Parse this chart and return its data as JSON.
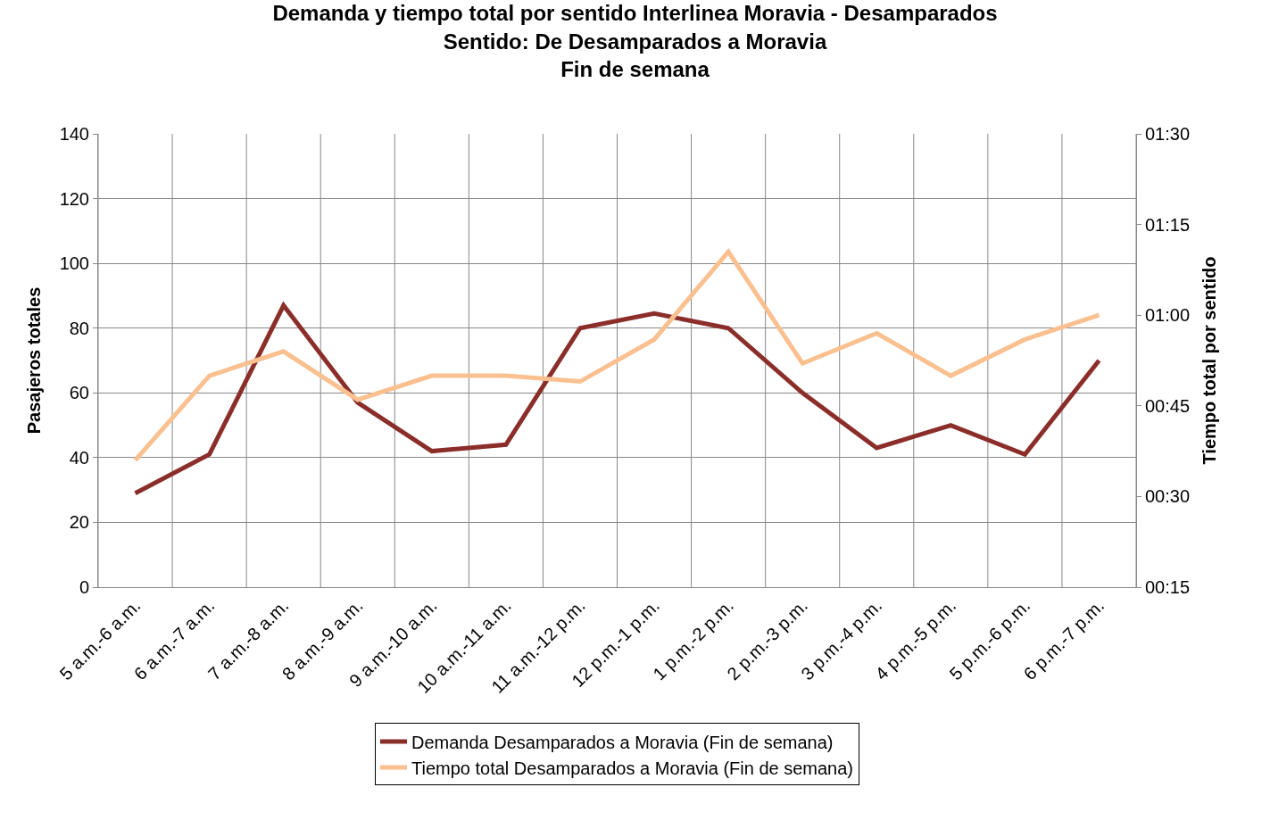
{
  "chart_data": {
    "type": "line",
    "title": "Demanda y tiempo total por sentido Interlinea Moravia - Desamparados\nSentido: De Desamparados a Moravia\nFin de semana",
    "ylabel": "Pasajeros totales",
    "y2label": "Tiempo total por sentido",
    "categories": [
      "5 a.m.-6 a.m.",
      "6 a.m.-7 a.m.",
      "7 a.m.-8 a.m.",
      "8 a.m.-9 a.m.",
      "9 a.m.-10 a.m.",
      "10 a.m.-11 a.m.",
      "11 a.m.-12 p.m.",
      "12 p.m.-1 p.m.",
      "1 p.m.-2 p.m.",
      "2 p.m.-3 p.m.",
      "3 p.m.-4 p.m.",
      "4 p.m.-5 p.m.",
      "5 p.m.-6 p.m.",
      "6 p.m.-7 p.m."
    ],
    "series": [
      {
        "name": "Demanda Desamparados a Moravia (Fin de semana)",
        "color": "#8b2e2a",
        "values": [
          29,
          41,
          87,
          57,
          42,
          44,
          80,
          84.5,
          80,
          60,
          43,
          50,
          41,
          70
        ]
      },
      {
        "name": "Tiempo total Desamparados a Moravia (Fin de semana)",
        "color": "#fac090",
        "axis": "y2",
        "values": [
          0.6,
          0.833,
          0.9,
          0.767,
          0.833,
          0.833,
          0.817,
          0.933,
          1.175,
          0.867,
          0.95,
          0.833,
          0.933,
          1.0
        ]
      }
    ],
    "ylim": [
      0,
      140
    ],
    "yticks": [
      0,
      20,
      40,
      60,
      80,
      100,
      120,
      140
    ],
    "y2lim": [
      0.25,
      1.5
    ],
    "y2ticks": [
      {
        "value": 0.25,
        "label": "00:15"
      },
      {
        "value": 0.5,
        "label": "00:30"
      },
      {
        "value": 0.75,
        "label": "00:45"
      },
      {
        "value": 1.0,
        "label": "01:00"
      },
      {
        "value": 1.25,
        "label": "01:15"
      },
      {
        "value": 1.5,
        "label": "01:30"
      }
    ],
    "grid": true,
    "legend": "bottom",
    "marker": "none",
    "line_style": "solid"
  }
}
